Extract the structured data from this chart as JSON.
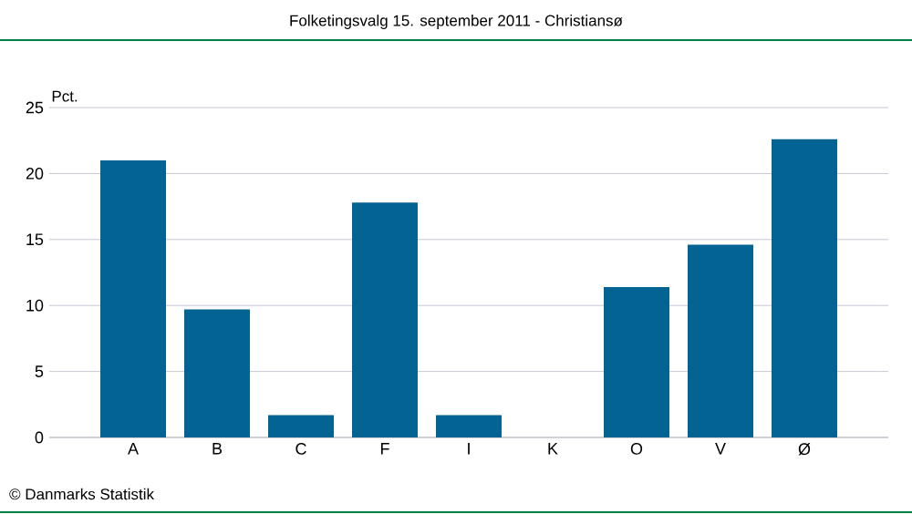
{
  "chart_data": {
    "type": "bar",
    "title": "Folketingsvalg 15. september 2011 - Christiansø",
    "ylabel": "Pct.",
    "categories": [
      "A",
      "B",
      "C",
      "F",
      "I",
      "K",
      "O",
      "V",
      "Ø"
    ],
    "values": [
      21.0,
      9.7,
      1.7,
      17.8,
      1.7,
      0,
      11.4,
      14.6,
      22.6
    ],
    "color": "#036393",
    "ylim": [
      0,
      25
    ],
    "yticks": [
      0,
      5,
      10,
      15,
      20,
      25
    ],
    "grid": "y",
    "annotations": [
      "© Danmarks Statistik"
    ]
  }
}
